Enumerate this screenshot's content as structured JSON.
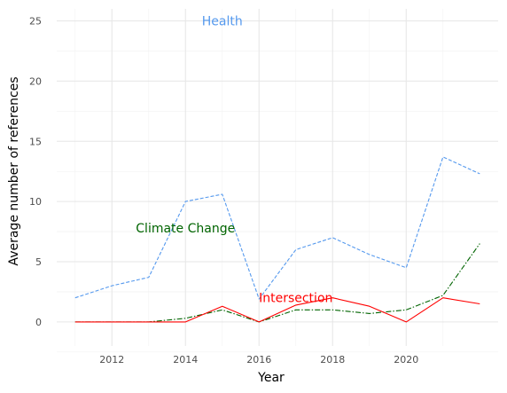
{
  "chart_data": {
    "type": "line",
    "xlabel": "Year",
    "ylabel": "Average number of references",
    "xlim": [
      2010.5,
      2022.5
    ],
    "ylim": [
      -2,
      26
    ],
    "x_ticks": [
      2012,
      2014,
      2016,
      2018,
      2020
    ],
    "y_ticks": [
      0,
      5,
      10,
      15,
      20,
      25
    ],
    "grid": true,
    "x": [
      2011,
      2012,
      2013,
      2014,
      2015,
      2016,
      2017,
      2018,
      2019,
      2020,
      2021,
      2022
    ],
    "series": [
      {
        "name": "Health",
        "color": "#5599ee",
        "dash": "dashed",
        "label_at": [
          2015,
          25
        ],
        "values": [
          2.0,
          3.0,
          3.7,
          10.0,
          10.6,
          1.9,
          6.0,
          7.0,
          5.6,
          4.5,
          13.7,
          12.3
        ]
      },
      {
        "name": "Climate Change",
        "color": "#006400",
        "dash": "dashdot",
        "label_at": [
          2014,
          7.8
        ],
        "values": [
          0.0,
          0.0,
          0.0,
          0.3,
          1.0,
          0.0,
          1.0,
          1.0,
          0.7,
          1.0,
          2.2,
          6.5
        ]
      },
      {
        "name": "Intersection",
        "color": "#ff0000",
        "dash": "solid",
        "label_at": [
          2017,
          2.0
        ],
        "values": [
          0.0,
          0.0,
          0.0,
          0.0,
          1.3,
          0.0,
          1.4,
          2.0,
          1.3,
          0.0,
          2.0,
          1.5
        ]
      }
    ]
  }
}
